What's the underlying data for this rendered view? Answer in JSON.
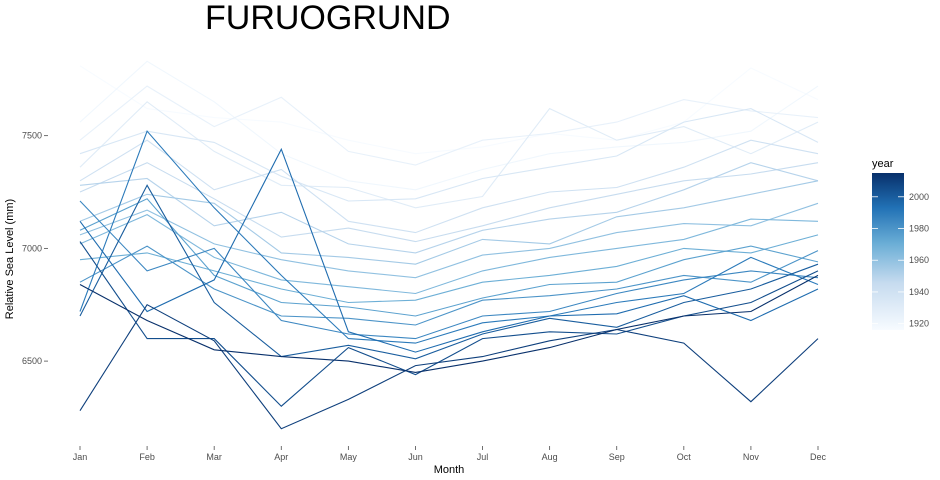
{
  "chart_data": {
    "type": "line",
    "title": "FURUOGRUND",
    "xlabel": "Month",
    "ylabel": "Relative Sea Level (mm)",
    "categories": [
      "Jan",
      "Feb",
      "Mar",
      "Apr",
      "May",
      "Jun",
      "Jul",
      "Aug",
      "Sep",
      "Oct",
      "Nov",
      "Dec"
    ],
    "y_ticks": [
      6500,
      7000,
      7500
    ],
    "ylim": [
      6150,
      7880
    ],
    "grid": false,
    "color_by": "year",
    "colors": {
      "low": "#f7fbff",
      "high": "#08306b"
    },
    "legend": {
      "title": "year",
      "position": "right",
      "range": [
        1916,
        2015
      ],
      "ticks": [
        1920,
        1940,
        1960,
        1980,
        2000
      ]
    },
    "year_range": [
      1916,
      2015
    ],
    "series": [
      {
        "year": 1916,
        "values": [
          7810,
          7620,
          7580,
          7560,
          7480,
          7420,
          7450,
          7510,
          7480,
          7560,
          7800,
          7660
        ]
      },
      {
        "year": 1920,
        "values": [
          7560,
          7830,
          7650,
          7420,
          7300,
          7260,
          7350,
          7420,
          7450,
          7470,
          7520,
          7720
        ]
      },
      {
        "year": 1925,
        "values": [
          7480,
          7720,
          7540,
          7670,
          7430,
          7370,
          7480,
          7510,
          7560,
          7660,
          7610,
          7580
        ]
      },
      {
        "year": 1930,
        "values": [
          7360,
          7650,
          7430,
          7280,
          7270,
          7180,
          7230,
          7620,
          7480,
          7540,
          7420,
          7560
        ]
      },
      {
        "year": 1935,
        "values": [
          7420,
          7520,
          7470,
          7320,
          7210,
          7220,
          7310,
          7360,
          7410,
          7560,
          7620,
          7470
        ]
      },
      {
        "year": 1940,
        "values": [
          7300,
          7480,
          7260,
          7350,
          7120,
          7070,
          7180,
          7250,
          7270,
          7360,
          7480,
          7420
        ]
      },
      {
        "year": 1945,
        "values": [
          7250,
          7380,
          7220,
          7050,
          7090,
          7030,
          7100,
          7180,
          7240,
          7300,
          7330,
          7380
        ]
      },
      {
        "year": 1950,
        "values": [
          7280,
          7310,
          7100,
          7160,
          7020,
          6980,
          7080,
          7130,
          7160,
          7260,
          7380,
          7300
        ]
      },
      {
        "year": 1955,
        "values": [
          7120,
          7240,
          7200,
          6980,
          6960,
          6930,
          7040,
          7020,
          7140,
          7180,
          7240,
          7300
        ]
      },
      {
        "year": 1960,
        "values": [
          7060,
          7170,
          7020,
          6950,
          6900,
          6870,
          6970,
          7000,
          7070,
          7110,
          7100,
          7200
        ]
      },
      {
        "year": 1965,
        "values": [
          7020,
          7150,
          6960,
          6860,
          6830,
          6800,
          6900,
          6960,
          7000,
          7040,
          7130,
          7120
        ]
      },
      {
        "year": 1970,
        "values": [
          6950,
          6980,
          6900,
          6820,
          6760,
          6770,
          6850,
          6880,
          6920,
          7000,
          6980,
          7060
        ]
      },
      {
        "year": 1975,
        "values": [
          7080,
          7220,
          6880,
          6760,
          6740,
          6700,
          6780,
          6840,
          6850,
          6950,
          7010,
          6940
        ]
      },
      {
        "year": 1980,
        "values": [
          6850,
          7010,
          6820,
          6700,
          6690,
          6660,
          6770,
          6790,
          6820,
          6880,
          6850,
          6990
        ]
      },
      {
        "year": 1985,
        "values": [
          7210,
          6900,
          7000,
          6680,
          6620,
          6600,
          6700,
          6720,
          6800,
          6860,
          6900,
          6870
        ]
      },
      {
        "year": 1990,
        "values": [
          6720,
          7520,
          7180,
          6880,
          6600,
          6580,
          6670,
          6700,
          6760,
          6800,
          6960,
          6840
        ]
      },
      {
        "year": 1995,
        "values": [
          7120,
          6720,
          6860,
          7440,
          6630,
          6540,
          6630,
          6700,
          6710,
          6790,
          6680,
          6820
        ]
      },
      {
        "year": 2000,
        "values": [
          6700,
          7280,
          6760,
          6520,
          6570,
          6510,
          6620,
          6690,
          6650,
          6760,
          6820,
          6930
        ]
      },
      {
        "year": 2005,
        "values": [
          7030,
          6600,
          6600,
          6300,
          6560,
          6440,
          6600,
          6630,
          6620,
          6700,
          6760,
          6900
        ]
      },
      {
        "year": 2010,
        "values": [
          6280,
          6750,
          6590,
          6200,
          6330,
          6480,
          6520,
          6590,
          6640,
          6580,
          6320,
          6600
        ]
      },
      {
        "year": 2015,
        "values": [
          6840,
          6680,
          6550,
          6520,
          6500,
          6450,
          6500,
          6560,
          6640,
          6700,
          6720,
          6880
        ]
      }
    ]
  }
}
